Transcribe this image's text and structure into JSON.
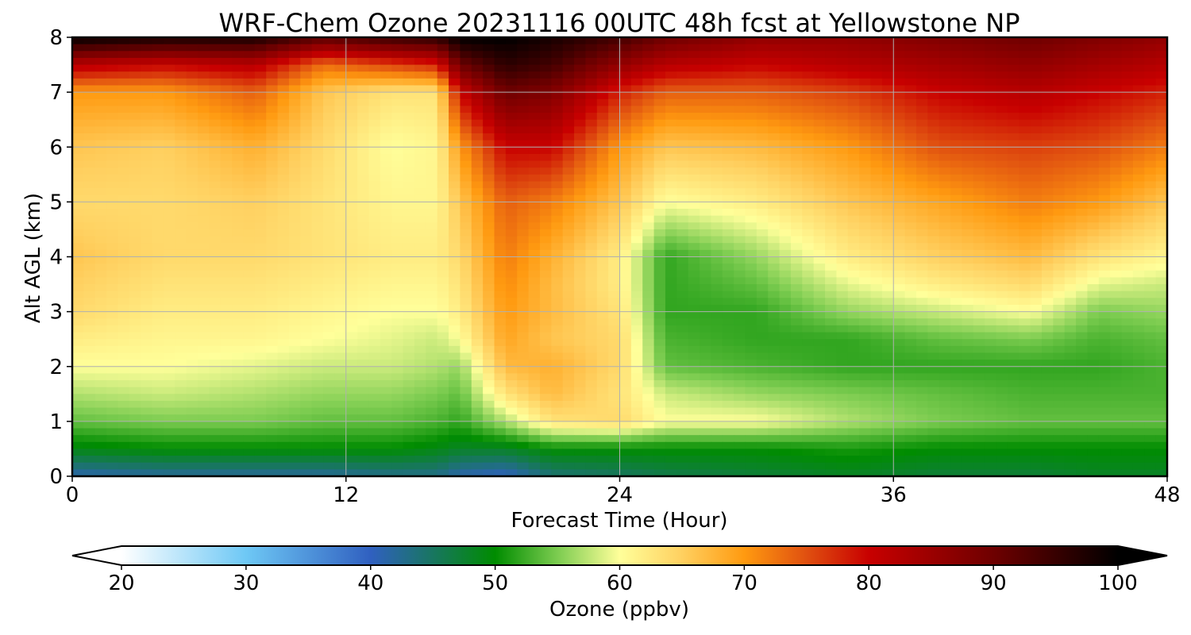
{
  "chart_data": {
    "type": "heatmap",
    "title": "WRF-Chem Ozone  20231116 00UTC 48h fcst at Yellowstone NP",
    "xlabel": "Forecast Time (Hour)",
    "ylabel": "Alt AGL (km)",
    "xlim": [
      0,
      48
    ],
    "ylim": [
      0,
      8
    ],
    "x_ticks": [
      0,
      12,
      24,
      36,
      48
    ],
    "y_ticks": [
      0,
      1,
      2,
      3,
      4,
      5,
      6,
      7,
      8
    ],
    "grid": true,
    "colorbar": {
      "label": "Ozone  (ppbv)",
      "min": 20,
      "max": 100,
      "ticks": [
        20,
        30,
        40,
        50,
        60,
        70,
        80,
        90,
        100
      ],
      "extend": "both",
      "colors": [
        {
          "value": 20,
          "color": "#ffffff"
        },
        {
          "value": 30,
          "color": "#6ec8f5"
        },
        {
          "value": 40,
          "color": "#3060c0"
        },
        {
          "value": 50,
          "color": "#008c00"
        },
        {
          "value": 55,
          "color": "#7ccc50"
        },
        {
          "value": 60,
          "color": "#ffff9a"
        },
        {
          "value": 65,
          "color": "#ffd060"
        },
        {
          "value": 70,
          "color": "#ff9a10"
        },
        {
          "value": 75,
          "color": "#e05010"
        },
        {
          "value": 80,
          "color": "#c80000"
        },
        {
          "value": 90,
          "color": "#6e0000"
        },
        {
          "value": 100,
          "color": "#000000"
        }
      ]
    },
    "hours": [
      0,
      4,
      8,
      11,
      14,
      16,
      17,
      19,
      21,
      24,
      26,
      30,
      34,
      38,
      42,
      45,
      48
    ],
    "altitudes_km": [
      0,
      0.5,
      1,
      1.5,
      2,
      2.5,
      3,
      3.5,
      4,
      5,
      6,
      7,
      7.5,
      8
    ],
    "ozone_ppbv": [
      [
        41,
        42,
        42,
        42,
        43,
        43,
        41,
        40,
        44,
        45,
        46,
        47,
        48,
        47,
        47,
        48,
        48
      ],
      [
        49,
        50,
        50,
        50,
        50,
        49,
        48,
        48,
        50,
        50,
        50,
        50,
        51,
        50,
        50,
        50,
        50
      ],
      [
        54,
        55,
        55,
        54,
        54,
        53,
        52,
        57,
        63,
        64,
        60,
        60,
        57,
        55,
        54,
        54,
        54
      ],
      [
        57,
        58,
        57,
        56,
        56,
        55,
        54,
        63,
        67,
        63,
        58,
        56,
        55,
        54,
        53,
        53,
        53
      ],
      [
        60,
        60,
        59,
        58,
        58,
        57,
        56,
        67,
        68,
        64,
        54,
        53,
        52,
        52,
        52,
        52,
        53
      ],
      [
        62,
        61,
        61,
        60,
        59,
        58,
        60,
        69,
        66,
        64,
        53,
        52,
        52,
        54,
        55,
        53,
        54
      ],
      [
        64,
        62,
        62,
        61,
        60,
        60,
        62,
        70,
        67,
        63,
        52,
        52,
        56,
        58,
        60,
        55,
        56
      ],
      [
        65,
        63,
        63,
        62,
        61,
        61,
        63,
        71,
        67,
        62,
        52,
        54,
        59,
        62,
        64,
        59,
        58
      ],
      [
        66,
        64,
        64,
        63,
        62,
        62,
        64,
        72,
        68,
        62,
        52,
        56,
        62,
        65,
        67,
        63,
        61
      ],
      [
        64,
        64,
        65,
        63,
        61,
        61,
        66,
        74,
        72,
        66,
        60,
        62,
        66,
        69,
        72,
        70,
        66
      ],
      [
        66,
        65,
        68,
        64,
        60,
        61,
        70,
        80,
        80,
        70,
        66,
        67,
        70,
        75,
        76,
        75,
        72
      ],
      [
        70,
        70,
        74,
        66,
        63,
        63,
        80,
        90,
        88,
        78,
        74,
        74,
        76,
        80,
        82,
        80,
        78
      ],
      [
        82,
        80,
        82,
        73,
        76,
        78,
        90,
        96,
        94,
        86,
        82,
        80,
        82,
        84,
        86,
        84,
        82
      ],
      [
        100,
        98,
        98,
        92,
        95,
        96,
        100,
        100,
        98,
        94,
        90,
        86,
        86,
        88,
        90,
        88,
        86
      ]
    ]
  }
}
